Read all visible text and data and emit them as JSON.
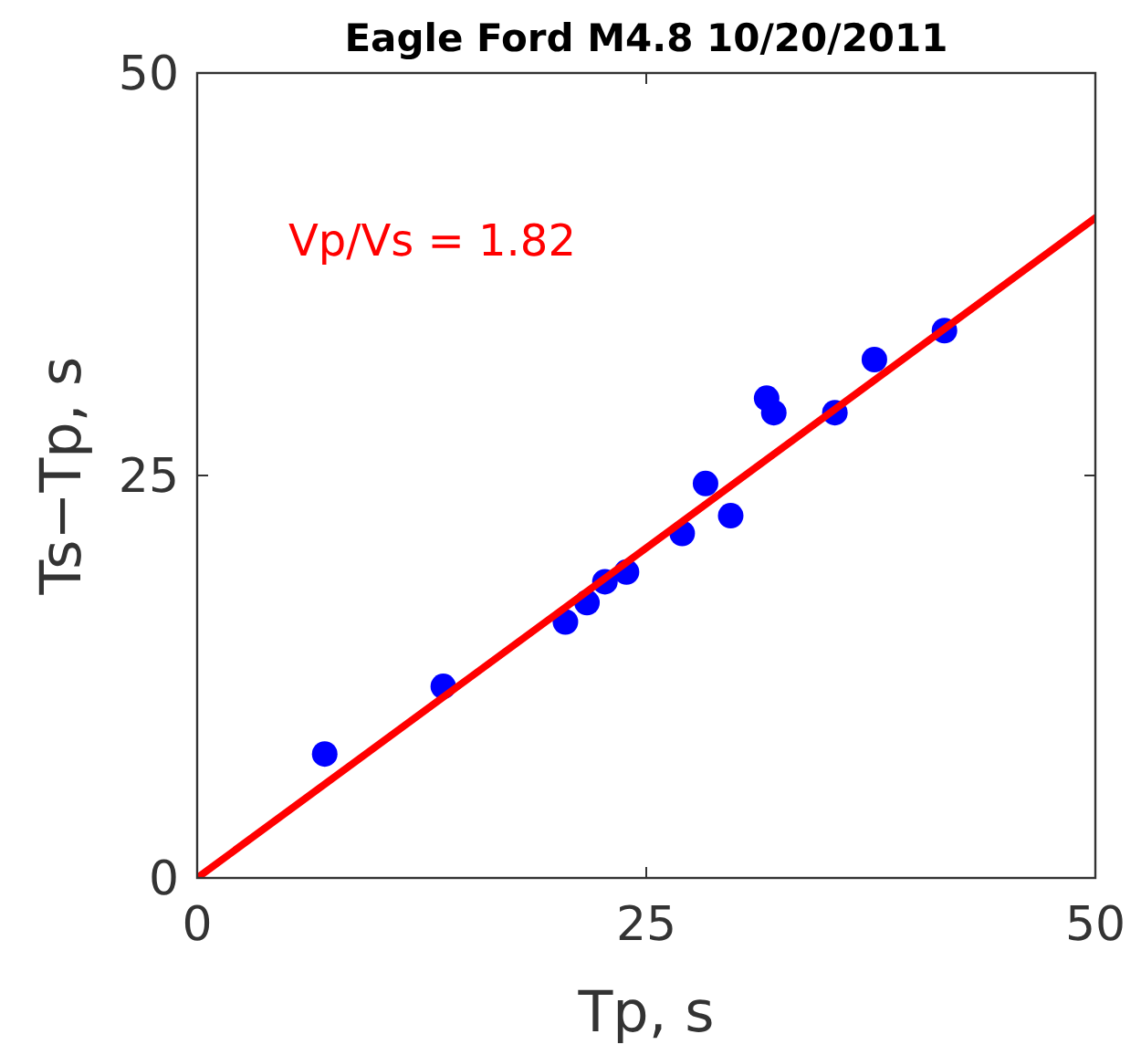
{
  "chart_data": {
    "type": "scatter",
    "title": "Eagle Ford M4.8 10/20/2011",
    "xlabel": "Tp, s",
    "ylabel": "Ts−Tp, s",
    "xlim": [
      0,
      50
    ],
    "ylim": [
      0,
      50
    ],
    "xticks": [
      0,
      25,
      50
    ],
    "yticks": [
      0,
      25,
      50
    ],
    "marker": "circle",
    "grid": false,
    "annotations": [
      "Vp/Vs = 1.82"
    ],
    "series": [
      {
        "color": "#0000ff",
        "x": [
          7.1,
          13.7,
          20.5,
          21.7,
          22.7,
          23.9,
          27.0,
          28.3,
          29.7,
          31.7,
          32.1,
          35.5,
          37.7,
          41.6
        ],
        "values": [
          7.7,
          11.9,
          15.9,
          17.1,
          18.4,
          19.0,
          21.4,
          24.5,
          22.5,
          29.8,
          28.9,
          28.9,
          32.2,
          34.0
        ]
      },
      {
        "type": "line",
        "color": "#ff0000",
        "line_style": "solid",
        "marker": "none",
        "x": [
          0,
          50
        ],
        "values": [
          0,
          41
        ]
      }
    ]
  }
}
